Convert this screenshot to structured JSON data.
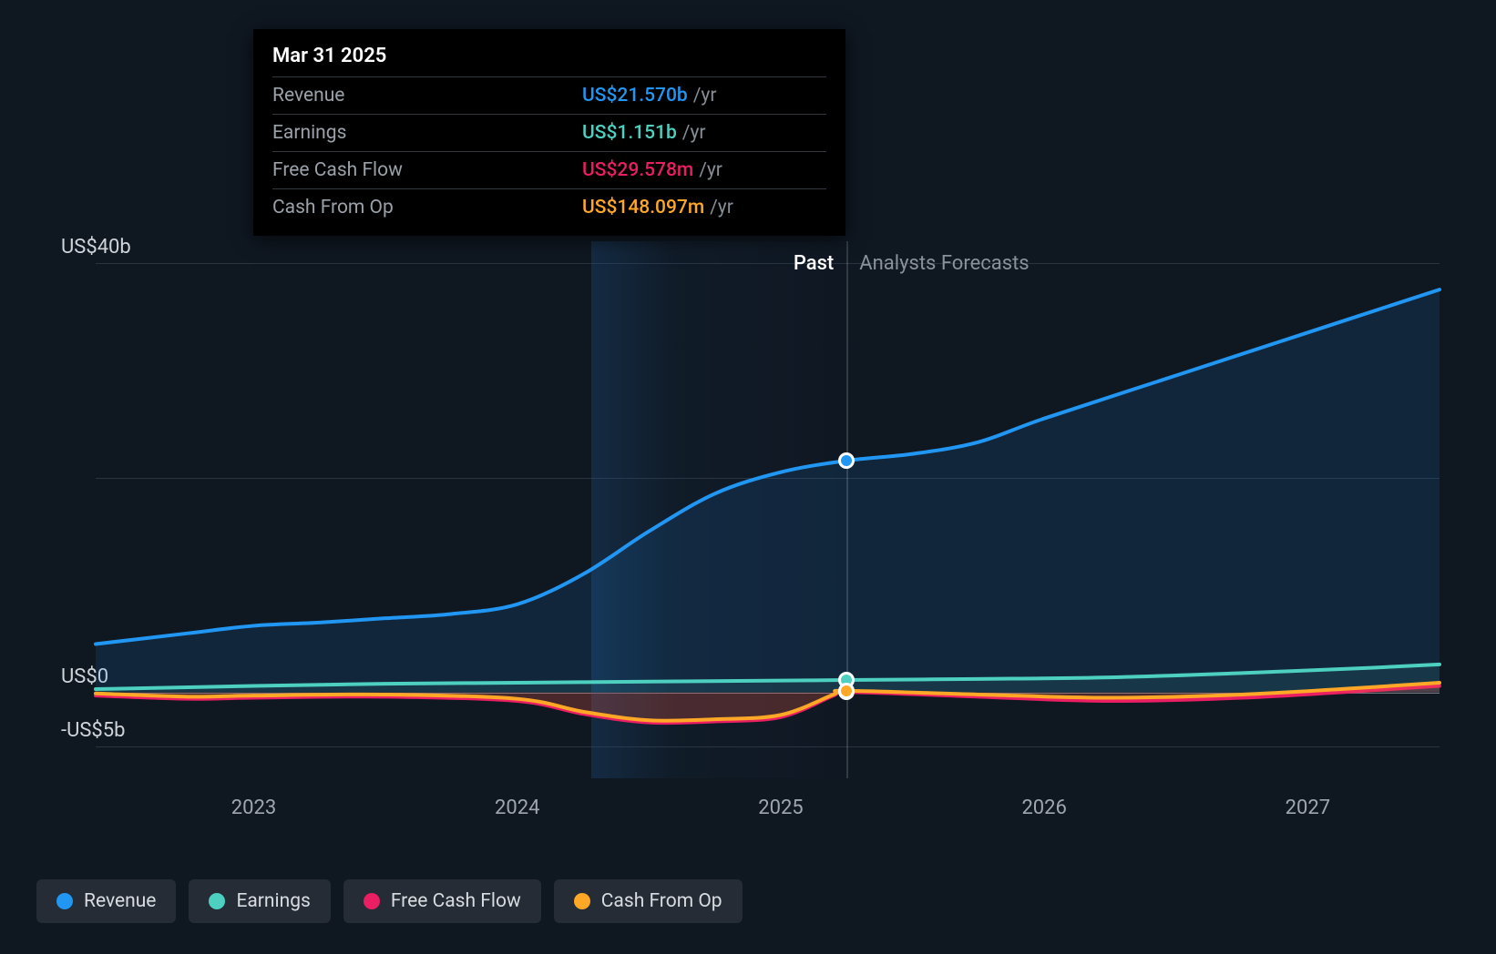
{
  "chart": {
    "type": "line-area",
    "background_color": "#0f1721",
    "grid_color": "#2a3340",
    "zero_line_color": "#707780",
    "axis_text_color": "#a0a6ad",
    "y_label_color": "#d0d4d8",
    "font_size_axis": 22,
    "line_width": 4,
    "x": {
      "min": 2022.4,
      "max": 2027.5,
      "ticks": [
        2023,
        2024,
        2025,
        2026,
        2027
      ],
      "tick_labels": [
        "2023",
        "2024",
        "2025",
        "2026",
        "2027"
      ]
    },
    "y": {
      "min": -8,
      "max": 42,
      "ticks": [
        40,
        20,
        0,
        -5
      ],
      "tick_labels": [
        "US$40b",
        "",
        "US$0",
        "-US$5b"
      ],
      "gridlines_at": [
        40,
        20,
        0,
        -5
      ]
    },
    "regions": {
      "split_x": 2025.25,
      "past_label": "Past",
      "forecast_label": "Analysts Forecasts",
      "past_color": "#ffffff",
      "forecast_color": "#8a9199"
    },
    "series": [
      {
        "key": "revenue",
        "label": "Revenue",
        "color": "#2196f3",
        "fill_opacity": 0.12,
        "points": [
          [
            2022.4,
            4.5
          ],
          [
            2022.75,
            5.5
          ],
          [
            2023.0,
            6.2
          ],
          [
            2023.25,
            6.5
          ],
          [
            2023.5,
            6.9
          ],
          [
            2023.75,
            7.3
          ],
          [
            2024.0,
            8.2
          ],
          [
            2024.25,
            11.0
          ],
          [
            2024.5,
            15.0
          ],
          [
            2024.75,
            18.5
          ],
          [
            2025.0,
            20.5
          ],
          [
            2025.25,
            21.57
          ],
          [
            2025.5,
            22.2
          ],
          [
            2025.75,
            23.3
          ],
          [
            2026.0,
            25.5
          ],
          [
            2026.5,
            29.5
          ],
          [
            2027.0,
            33.5
          ],
          [
            2027.5,
            37.5
          ]
        ]
      },
      {
        "key": "earnings",
        "label": "Earnings",
        "color": "#4dd0c0",
        "fill_opacity": 0.1,
        "points": [
          [
            2022.4,
            0.3
          ],
          [
            2023.0,
            0.6
          ],
          [
            2023.5,
            0.8
          ],
          [
            2024.0,
            0.9
          ],
          [
            2024.5,
            1.0
          ],
          [
            2025.0,
            1.1
          ],
          [
            2025.25,
            1.151
          ],
          [
            2025.75,
            1.25
          ],
          [
            2026.25,
            1.4
          ],
          [
            2026.75,
            1.8
          ],
          [
            2027.25,
            2.3
          ],
          [
            2027.5,
            2.6
          ]
        ]
      },
      {
        "key": "fcf",
        "label": "Free Cash Flow",
        "color": "#e91e63",
        "fill_opacity": 0.15,
        "points": [
          [
            2022.4,
            -0.3
          ],
          [
            2022.75,
            -0.6
          ],
          [
            2023.0,
            -0.5
          ],
          [
            2023.5,
            -0.4
          ],
          [
            2024.0,
            -0.8
          ],
          [
            2024.25,
            -2.0
          ],
          [
            2024.5,
            -2.8
          ],
          [
            2024.75,
            -2.7
          ],
          [
            2025.0,
            -2.3
          ],
          [
            2025.2,
            -0.3
          ],
          [
            2025.25,
            0.0296
          ],
          [
            2025.75,
            -0.4
          ],
          [
            2026.25,
            -0.8
          ],
          [
            2026.75,
            -0.5
          ],
          [
            2027.25,
            0.2
          ],
          [
            2027.5,
            0.6
          ]
        ]
      },
      {
        "key": "cfo",
        "label": "Cash From Op",
        "color": "#ffa726",
        "fill_opacity": 0.12,
        "points": [
          [
            2022.4,
            -0.1
          ],
          [
            2022.75,
            -0.4
          ],
          [
            2023.0,
            -0.3
          ],
          [
            2023.5,
            -0.2
          ],
          [
            2024.0,
            -0.6
          ],
          [
            2024.25,
            -1.8
          ],
          [
            2024.5,
            -2.6
          ],
          [
            2024.75,
            -2.5
          ],
          [
            2025.0,
            -2.1
          ],
          [
            2025.2,
            -0.2
          ],
          [
            2025.25,
            0.148
          ],
          [
            2025.75,
            -0.2
          ],
          [
            2026.25,
            -0.5
          ],
          [
            2026.75,
            -0.2
          ],
          [
            2027.25,
            0.5
          ],
          [
            2027.5,
            0.9
          ]
        ]
      }
    ],
    "hover": {
      "x": 2025.25,
      "date_label": "Mar 31 2025",
      "rows": [
        {
          "series": "revenue",
          "label": "Revenue",
          "value": "US$21.570b",
          "suffix": "/yr",
          "color": "#2196f3",
          "y": 21.57
        },
        {
          "series": "earnings",
          "label": "Earnings",
          "value": "US$1.151b",
          "suffix": "/yr",
          "color": "#4dd0c0",
          "y": 1.151
        },
        {
          "series": "fcf",
          "label": "Free Cash Flow",
          "value": "US$29.578m",
          "suffix": "/yr",
          "color": "#e91e63",
          "y": 0.0296
        },
        {
          "series": "cfo",
          "label": "Cash From Op",
          "value": "US$148.097m",
          "suffix": "/yr",
          "color": "#ffa726",
          "y": 0.148
        }
      ]
    }
  },
  "legend": {
    "items": [
      {
        "key": "revenue",
        "label": "Revenue",
        "color": "#2196f3"
      },
      {
        "key": "earnings",
        "label": "Earnings",
        "color": "#4dd0c0"
      },
      {
        "key": "fcf",
        "label": "Free Cash Flow",
        "color": "#e91e63"
      },
      {
        "key": "cfo",
        "label": "Cash From Op",
        "color": "#ffa726"
      }
    ],
    "item_bg": "#252c36",
    "text_color": "#d8dce0",
    "font_size": 21
  }
}
